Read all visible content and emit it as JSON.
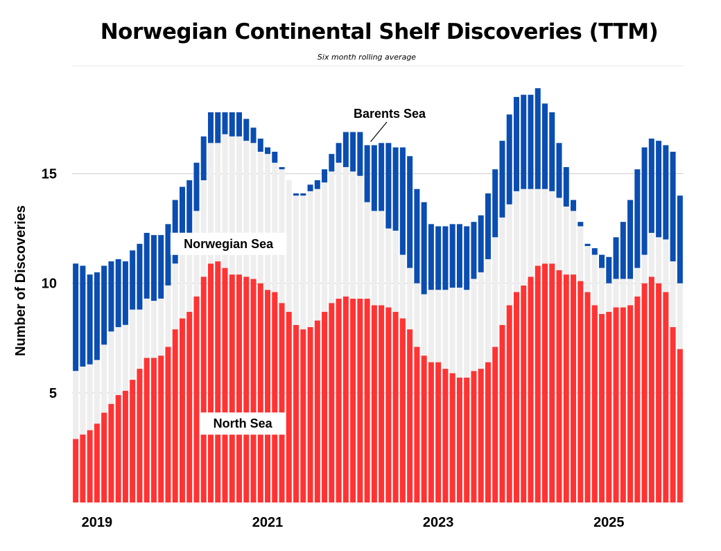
{
  "chart_data": {
    "type": "bar",
    "stacked": true,
    "title": "Norwegian Continental Shelf Discoveries (TTM)",
    "subtitle": "Six month rolling average",
    "ylabel": "Number of Discoveries",
    "xlabel": "",
    "ylim": [
      0,
      21.5
    ],
    "yticks": [
      5,
      10,
      15
    ],
    "grid": true,
    "x_tick_labels": [
      {
        "label": "2019",
        "index": 3
      },
      {
        "label": "2021",
        "index": 27
      },
      {
        "label": "2023",
        "index": 51
      },
      {
        "label": "2025",
        "index": 75
      }
    ],
    "series": [
      {
        "name": "North Sea",
        "color": "#ff3333",
        "values": [
          2.9,
          3.1,
          3.3,
          3.6,
          4.1,
          4.5,
          4.9,
          5.1,
          5.6,
          6.1,
          6.6,
          6.6,
          6.7,
          7.1,
          7.9,
          8.4,
          8.7,
          9.4,
          10.3,
          10.9,
          11.0,
          10.7,
          10.4,
          10.4,
          10.3,
          10.2,
          10.0,
          9.7,
          9.6,
          9.1,
          8.7,
          8.1,
          7.9,
          8.0,
          8.3,
          8.7,
          9.1,
          9.3,
          9.4,
          9.3,
          9.3,
          9.3,
          9.0,
          9.0,
          8.9,
          8.7,
          8.4,
          7.9,
          7.1,
          6.7,
          6.4,
          6.4,
          6.1,
          5.9,
          5.7,
          5.7,
          6.0,
          6.1,
          6.4,
          7.1,
          8.1,
          9.0,
          9.6,
          9.9,
          10.3,
          10.8,
          10.9,
          10.9,
          10.6,
          10.4,
          10.4,
          10.1,
          9.6,
          9.0,
          8.6,
          8.7,
          8.9,
          8.9,
          9.0,
          9.4,
          10.0,
          10.3,
          10.0,
          9.6,
          8.0,
          7.0
        ]
      },
      {
        "name": "Norwegian Sea",
        "color": "#eeeeee",
        "values": [
          3.1,
          3.1,
          3.0,
          2.9,
          3.1,
          3.3,
          3.1,
          3.0,
          3.2,
          2.7,
          2.7,
          2.6,
          2.6,
          2.8,
          3.0,
          3.2,
          3.4,
          3.9,
          4.4,
          5.5,
          5.4,
          6.1,
          6.3,
          6.3,
          6.2,
          6.2,
          6.0,
          6.2,
          5.9,
          6.1,
          6.0,
          5.9,
          6.1,
          6.2,
          6.0,
          5.9,
          6.0,
          6.2,
          5.9,
          5.8,
          5.6,
          4.4,
          4.3,
          4.3,
          3.6,
          3.7,
          2.9,
          2.8,
          2.9,
          2.8,
          3.3,
          3.3,
          3.6,
          3.9,
          4.1,
          4.0,
          4.2,
          4.4,
          4.7,
          5.0,
          4.9,
          4.6,
          4.6,
          4.4,
          4.0,
          3.5,
          3.4,
          3.3,
          3.3,
          3.1,
          2.9,
          2.5,
          2.1,
          2.3,
          2.1,
          1.3,
          1.3,
          1.3,
          1.2,
          1.3,
          1.3,
          2.0,
          2.1,
          2.4,
          3.0,
          3.0
        ]
      },
      {
        "name": "Barents Sea",
        "color": "#0b4db0",
        "values": [
          4.9,
          4.6,
          4.1,
          4.0,
          3.6,
          3.2,
          3.1,
          2.9,
          2.7,
          3.0,
          3.0,
          3.0,
          2.9,
          2.8,
          2.9,
          2.8,
          2.6,
          2.2,
          2.0,
          1.4,
          1.4,
          1.0,
          1.1,
          1.1,
          1.0,
          0.7,
          0.6,
          0.3,
          0.5,
          0.1,
          0.0,
          0.1,
          0.1,
          0.3,
          0.4,
          0.6,
          0.8,
          0.9,
          1.6,
          1.8,
          2.0,
          2.6,
          3.0,
          3.1,
          3.9,
          3.8,
          4.9,
          5.1,
          4.3,
          4.2,
          3.0,
          2.9,
          2.9,
          2.9,
          2.9,
          2.9,
          2.6,
          2.6,
          3.0,
          3.1,
          3.5,
          4.1,
          4.3,
          4.3,
          4.3,
          4.6,
          3.9,
          3.6,
          2.5,
          1.8,
          0.5,
          0.2,
          0.1,
          0.3,
          0.6,
          1.2,
          1.9,
          2.6,
          3.6,
          4.5,
          4.9,
          4.3,
          4.4,
          4.3,
          5.0,
          4.0
        ]
      }
    ],
    "annotations": [
      {
        "text": "Norwegian Sea",
        "series": "Norwegian Sea"
      },
      {
        "text": "North Sea",
        "series": "North Sea"
      },
      {
        "text": "Barents Sea",
        "series": "Barents Sea"
      }
    ]
  }
}
